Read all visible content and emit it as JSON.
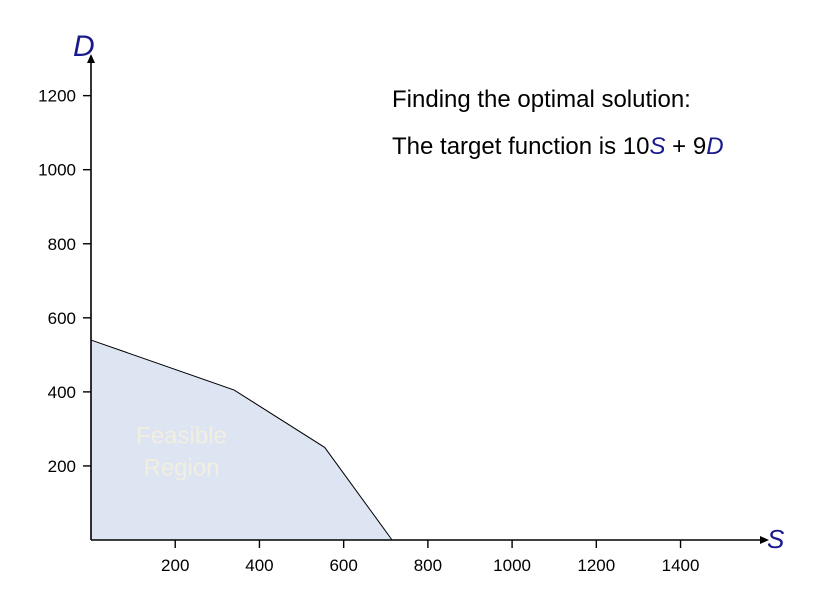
{
  "annotations": {
    "line1": "Finding the optimal solution:",
    "line2_prefix": "The target function is 10",
    "line2_var1": "S",
    "line2_mid": " + 9",
    "line2_var2": "D"
  },
  "chart_data": {
    "type": "area",
    "xlabel": "S",
    "ylabel": "D",
    "xlim": [
      0,
      1580
    ],
    "ylim": [
      0,
      1290
    ],
    "xticks": [
      200,
      400,
      600,
      800,
      1000,
      1200,
      1400
    ],
    "yticks": [
      200,
      400,
      600,
      800,
      1000,
      1200
    ],
    "grid": false,
    "region": {
      "label_lines": [
        "Feasible",
        "Region"
      ],
      "label_at": [
        215,
        260
      ],
      "fill_color": "#dde4f2",
      "label_color": "#f2efe0",
      "boundary": [
        [
          0,
          540
        ],
        [
          340,
          405
        ],
        [
          555,
          250
        ],
        [
          715,
          0
        ]
      ]
    },
    "axis_label_color": "#1a1a8c"
  }
}
